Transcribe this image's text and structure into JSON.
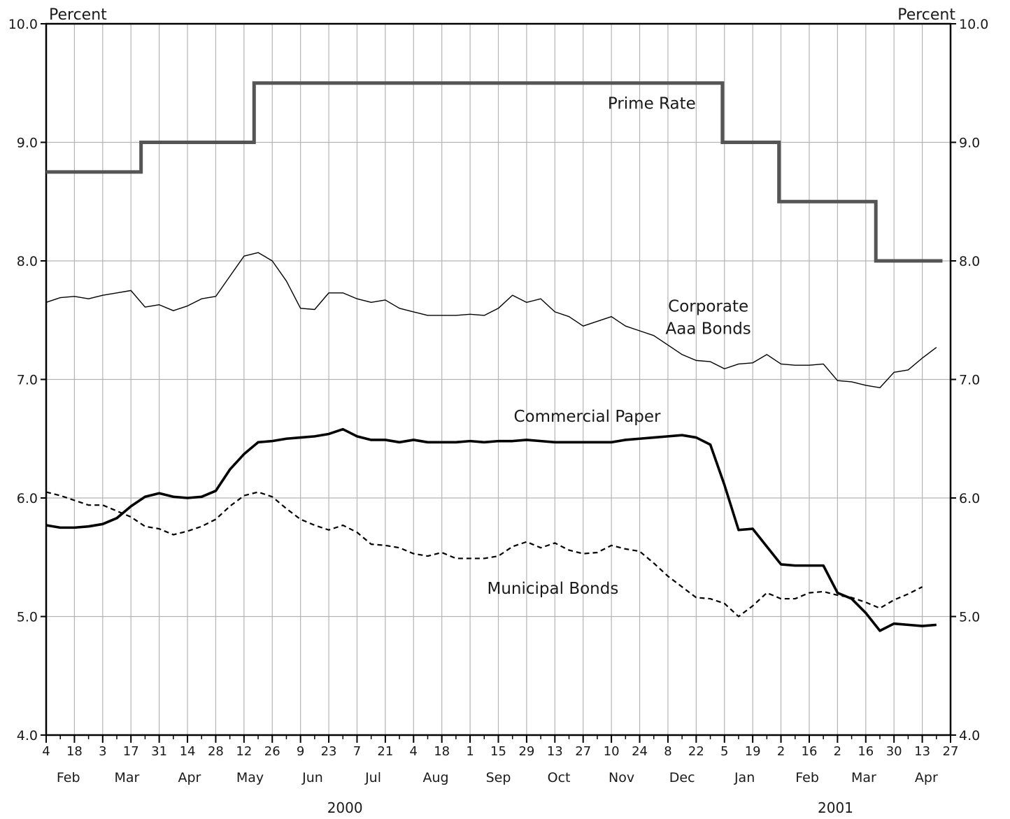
{
  "chart_data": {
    "type": "line",
    "left_axis_label": "Percent",
    "right_axis_label": "Percent",
    "ylim": [
      4.0,
      10.0
    ],
    "y_ticks": [
      "4.0",
      "5.0",
      "6.0",
      "7.0",
      "8.0",
      "9.0",
      "10.0"
    ],
    "grid": true,
    "x_tick_labels": [
      "4",
      "18",
      "3",
      "17",
      "31",
      "14",
      "28",
      "12",
      "26",
      "9",
      "23",
      "7",
      "21",
      "4",
      "18",
      "1",
      "15",
      "29",
      "13",
      "27",
      "10",
      "24",
      "8",
      "22",
      "5",
      "19",
      "2",
      "16",
      "2",
      "16",
      "30",
      "13",
      "27"
    ],
    "x_ticks": [
      "2000-02-04",
      "2000-02-18",
      "2000-03-03",
      "2000-03-17",
      "2000-03-31",
      "2000-04-14",
      "2000-04-28",
      "2000-05-12",
      "2000-05-26",
      "2000-06-09",
      "2000-06-23",
      "2000-07-07",
      "2000-07-21",
      "2000-08-04",
      "2000-08-18",
      "2000-09-01",
      "2000-09-15",
      "2000-09-29",
      "2000-10-13",
      "2000-10-27",
      "2000-11-10",
      "2000-11-24",
      "2000-12-08",
      "2000-12-22",
      "2001-01-05",
      "2001-01-19",
      "2001-02-02",
      "2001-02-16",
      "2001-03-02",
      "2001-03-16",
      "2001-03-30",
      "2001-04-13",
      "2001-04-27"
    ],
    "x_range": [
      "2000-02-04",
      "2001-04-27"
    ],
    "months": [
      {
        "label": "Feb",
        "date": "2000-02-15"
      },
      {
        "label": "Mar",
        "date": "2000-03-15"
      },
      {
        "label": "Apr",
        "date": "2000-04-15"
      },
      {
        "label": "May",
        "date": "2000-05-15"
      },
      {
        "label": "Jun",
        "date": "2000-06-15"
      },
      {
        "label": "Jul",
        "date": "2000-07-15"
      },
      {
        "label": "Aug",
        "date": "2000-08-15"
      },
      {
        "label": "Sep",
        "date": "2000-09-15"
      },
      {
        "label": "Oct",
        "date": "2000-10-15"
      },
      {
        "label": "Nov",
        "date": "2000-11-15"
      },
      {
        "label": "Dec",
        "date": "2000-12-15"
      },
      {
        "label": "Jan",
        "date": "2001-01-15"
      },
      {
        "label": "Feb",
        "date": "2001-02-15"
      },
      {
        "label": "Mar",
        "date": "2001-03-15"
      },
      {
        "label": "Apr",
        "date": "2001-04-15"
      }
    ],
    "years": [
      {
        "label": "2000",
        "date": "2000-07-01"
      },
      {
        "label": "2001",
        "date": "2001-03-01"
      }
    ],
    "series": [
      {
        "name": "Prime Rate",
        "style": "step",
        "color": "#555555",
        "x": [
          "2000-02-04",
          "2000-03-22",
          "2000-05-17",
          "2001-01-04",
          "2001-02-01",
          "2001-03-21",
          "2001-04-23"
        ],
        "values": [
          8.75,
          9.0,
          9.5,
          9.0,
          8.5,
          8.0,
          8.0
        ]
      },
      {
        "name": "Corporate Aaa Bonds",
        "style": "thin",
        "color": "#000000",
        "x": [
          "2000-02-04",
          "2000-02-11",
          "2000-02-18",
          "2000-02-25",
          "2000-03-03",
          "2000-03-10",
          "2000-03-17",
          "2000-03-24",
          "2000-03-31",
          "2000-04-07",
          "2000-04-14",
          "2000-04-21",
          "2000-04-28",
          "2000-05-05",
          "2000-05-12",
          "2000-05-19",
          "2000-05-26",
          "2000-06-02",
          "2000-06-09",
          "2000-06-16",
          "2000-06-23",
          "2000-06-30",
          "2000-07-07",
          "2000-07-14",
          "2000-07-21",
          "2000-07-28",
          "2000-08-04",
          "2000-08-11",
          "2000-08-18",
          "2000-08-25",
          "2000-09-01",
          "2000-09-08",
          "2000-09-15",
          "2000-09-22",
          "2000-09-29",
          "2000-10-06",
          "2000-10-13",
          "2000-10-20",
          "2000-10-27",
          "2000-11-03",
          "2000-11-10",
          "2000-11-17",
          "2000-11-24",
          "2000-12-01",
          "2000-12-08",
          "2000-12-15",
          "2000-12-22",
          "2000-12-29",
          "2001-01-05",
          "2001-01-12",
          "2001-01-19",
          "2001-01-26",
          "2001-02-02",
          "2001-02-09",
          "2001-02-16",
          "2001-02-23",
          "2001-03-02",
          "2001-03-09",
          "2001-03-16",
          "2001-03-23",
          "2001-03-30",
          "2001-04-06",
          "2001-04-13",
          "2001-04-20"
        ],
        "values": [
          7.65,
          7.69,
          7.7,
          7.68,
          7.71,
          7.73,
          7.75,
          7.61,
          7.63,
          7.58,
          7.62,
          7.68,
          7.7,
          7.87,
          8.04,
          8.07,
          8.0,
          7.83,
          7.6,
          7.59,
          7.73,
          7.73,
          7.68,
          7.65,
          7.67,
          7.6,
          7.57,
          7.54,
          7.54,
          7.54,
          7.55,
          7.54,
          7.6,
          7.71,
          7.65,
          7.68,
          7.57,
          7.53,
          7.45,
          7.49,
          7.53,
          7.45,
          7.41,
          7.37,
          7.29,
          7.21,
          7.16,
          7.15,
          7.09,
          7.13,
          7.14,
          7.21,
          7.13,
          7.12,
          7.12,
          7.13,
          6.99,
          6.98,
          6.95,
          6.93,
          7.06,
          7.08,
          7.18,
          7.27
        ]
      },
      {
        "name": "Commercial Paper",
        "style": "thick",
        "color": "#000000",
        "x": [
          "2000-02-04",
          "2000-02-11",
          "2000-02-18",
          "2000-02-25",
          "2000-03-03",
          "2000-03-10",
          "2000-03-17",
          "2000-03-24",
          "2000-03-31",
          "2000-04-07",
          "2000-04-14",
          "2000-04-21",
          "2000-04-28",
          "2000-05-05",
          "2000-05-12",
          "2000-05-19",
          "2000-05-26",
          "2000-06-02",
          "2000-06-09",
          "2000-06-16",
          "2000-06-23",
          "2000-06-30",
          "2000-07-07",
          "2000-07-14",
          "2000-07-21",
          "2000-07-28",
          "2000-08-04",
          "2000-08-11",
          "2000-08-18",
          "2000-08-25",
          "2000-09-01",
          "2000-09-08",
          "2000-09-15",
          "2000-09-22",
          "2000-09-29",
          "2000-10-06",
          "2000-10-13",
          "2000-10-20",
          "2000-10-27",
          "2000-11-03",
          "2000-11-10",
          "2000-11-17",
          "2000-11-24",
          "2000-12-01",
          "2000-12-08",
          "2000-12-15",
          "2000-12-22",
          "2000-12-29",
          "2001-01-05",
          "2001-01-12",
          "2001-01-19",
          "2001-01-26",
          "2001-02-02",
          "2001-02-09",
          "2001-02-16",
          "2001-02-23",
          "2001-03-02",
          "2001-03-09",
          "2001-03-16",
          "2001-03-23",
          "2001-03-30",
          "2001-04-06",
          "2001-04-13",
          "2001-04-20"
        ],
        "values": [
          5.77,
          5.75,
          5.75,
          5.76,
          5.78,
          5.83,
          5.93,
          6.01,
          6.04,
          6.01,
          6.0,
          6.01,
          6.06,
          6.24,
          6.37,
          6.47,
          6.48,
          6.5,
          6.51,
          6.52,
          6.54,
          6.58,
          6.52,
          6.49,
          6.49,
          6.47,
          6.49,
          6.47,
          6.47,
          6.47,
          6.48,
          6.47,
          6.48,
          6.48,
          6.49,
          6.48,
          6.47,
          6.47,
          6.47,
          6.47,
          6.47,
          6.49,
          6.5,
          6.51,
          6.52,
          6.53,
          6.51,
          6.45,
          6.11,
          5.73,
          5.74,
          5.59,
          5.44,
          5.43,
          5.43,
          5.43,
          5.2,
          5.15,
          5.03,
          4.88,
          4.94,
          4.93,
          4.92,
          4.93
        ]
      },
      {
        "name": "Municipal Bonds",
        "style": "dashed",
        "color": "#000000",
        "x": [
          "2000-02-04",
          "2000-02-11",
          "2000-02-18",
          "2000-02-25",
          "2000-03-03",
          "2000-03-10",
          "2000-03-17",
          "2000-03-24",
          "2000-03-31",
          "2000-04-07",
          "2000-04-14",
          "2000-04-21",
          "2000-04-28",
          "2000-05-05",
          "2000-05-12",
          "2000-05-19",
          "2000-05-26",
          "2000-06-02",
          "2000-06-09",
          "2000-06-16",
          "2000-06-23",
          "2000-06-30",
          "2000-07-07",
          "2000-07-14",
          "2000-07-21",
          "2000-07-28",
          "2000-08-04",
          "2000-08-11",
          "2000-08-18",
          "2000-08-25",
          "2000-09-01",
          "2000-09-08",
          "2000-09-15",
          "2000-09-22",
          "2000-09-29",
          "2000-10-06",
          "2000-10-13",
          "2000-10-20",
          "2000-10-27",
          "2000-11-03",
          "2000-11-10",
          "2000-11-17",
          "2000-11-24",
          "2000-12-01",
          "2000-12-08",
          "2000-12-15",
          "2000-12-22",
          "2000-12-29",
          "2001-01-05",
          "2001-01-12",
          "2001-01-19",
          "2001-01-26",
          "2001-02-02",
          "2001-02-09",
          "2001-02-16",
          "2001-02-23",
          "2001-03-02",
          "2001-03-09",
          "2001-03-16",
          "2001-03-23",
          "2001-03-30",
          "2001-04-06",
          "2001-04-13"
        ],
        "values": [
          6.05,
          6.02,
          5.98,
          5.94,
          5.94,
          5.89,
          5.84,
          5.76,
          5.74,
          5.69,
          5.72,
          5.76,
          5.82,
          5.93,
          6.02,
          6.05,
          6.01,
          5.91,
          5.82,
          5.77,
          5.73,
          5.77,
          5.71,
          5.61,
          5.6,
          5.58,
          5.53,
          5.51,
          5.54,
          5.49,
          5.49,
          5.49,
          5.51,
          5.59,
          5.63,
          5.58,
          5.62,
          5.56,
          5.53,
          5.54,
          5.6,
          5.57,
          5.55,
          5.45,
          5.34,
          5.25,
          5.16,
          5.15,
          5.11,
          5.0,
          5.09,
          5.2,
          5.15,
          5.15,
          5.2,
          5.21,
          5.18,
          5.16,
          5.12,
          5.07,
          5.14,
          5.19,
          5.25
        ]
      }
    ],
    "annotations": [
      {
        "text": "Prime Rate",
        "date": "2000-11-30",
        "y": 9.33
      },
      {
        "text": "Corporate",
        "date": "2000-12-28",
        "y": 7.62
      },
      {
        "text": "Aaa Bonds",
        "date": "2000-12-28",
        "y": 7.43
      },
      {
        "text": "Commercial Paper",
        "date": "2000-10-29",
        "y": 6.69
      },
      {
        "text": "Municipal Bonds",
        "date": "2000-10-12",
        "y": 5.24
      }
    ]
  }
}
